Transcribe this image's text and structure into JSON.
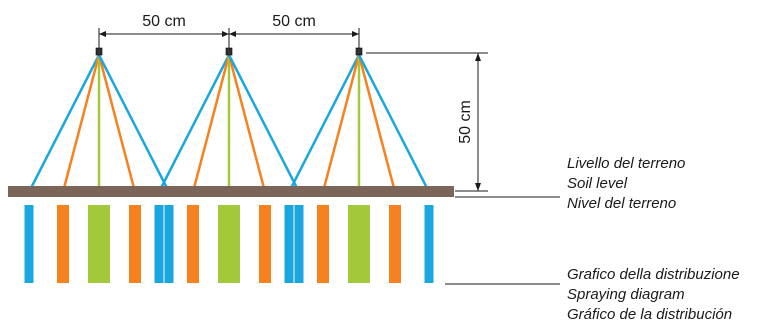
{
  "dimensions": {
    "nozzle_spacing_1": "50 cm",
    "nozzle_spacing_2": "50 cm",
    "nozzle_height": "50 cm"
  },
  "labels": {
    "soil_level": [
      "Livello del terreno",
      "Soil level",
      "Nivel del terreno"
    ],
    "spraying_diagram": [
      "Grafico della distribuzione",
      "Spraying diagram",
      "Gráfico de la distribución"
    ]
  },
  "colors": {
    "outer_jet": "#1aa7e0",
    "middle_jet": "#f5821f",
    "center_jet": "#a3c93a",
    "soil": "#7a6558",
    "dimension_line": "#1a1a1a",
    "nozzle": "#333333"
  },
  "nozzle_count": 3
}
